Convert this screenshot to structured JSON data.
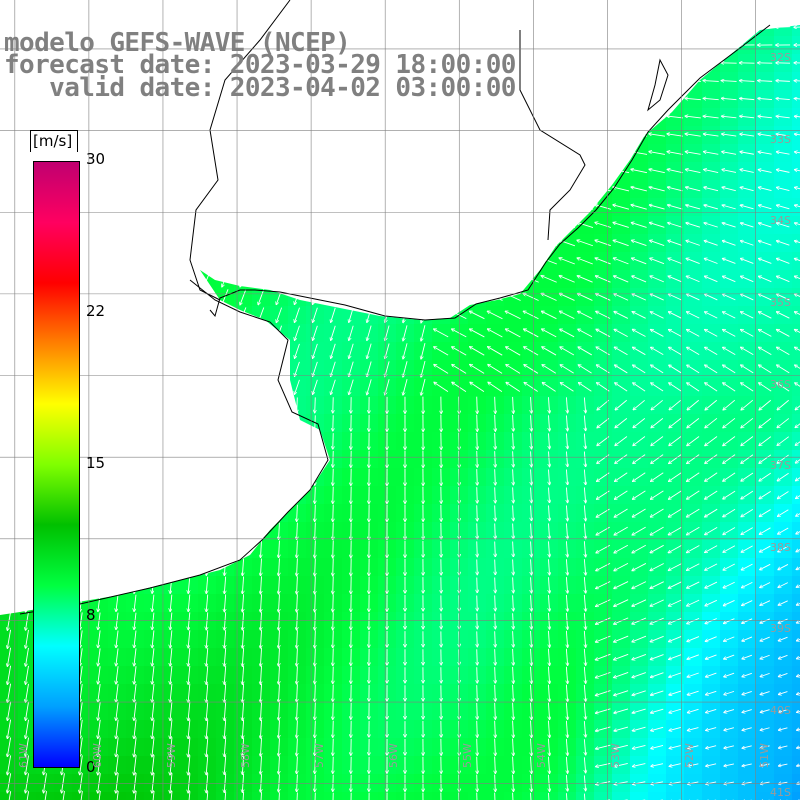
{
  "title": {
    "line1": "modelo GEFS-WAVE (NCEP)",
    "line2": "forecast date: 2023-03-29 18:00:00",
    "line3": "   valid date: 2023-04-02 03:00:00"
  },
  "colorbar": {
    "unit": "[m/s]",
    "min": 0,
    "max": 30,
    "ticks": [
      "30",
      "22",
      "15",
      "8",
      "0"
    ],
    "tick_values": [
      30,
      22.5,
      15,
      7.5,
      0
    ],
    "colors": [
      "#0000ff",
      "#00a0ff",
      "#00ffff",
      "#00ff40",
      "#00c000",
      "#80ff00",
      "#ffff00",
      "#ff8000",
      "#ff0000",
      "#ff0060",
      "#c00070"
    ]
  },
  "map": {
    "lat_labels": [
      "32S",
      "33S",
      "34S",
      "35S",
      "36S",
      "37S",
      "38S",
      "39S",
      "40S",
      "41S"
    ],
    "lat_values": [
      -32,
      -33,
      -34,
      -35,
      -36,
      -37,
      -38,
      -39,
      -40,
      -41
    ],
    "lon_labels": [
      "61W",
      "60W",
      "59W",
      "58W",
      "57W",
      "56W",
      "55W",
      "54W",
      "53W",
      "52W",
      "51W"
    ],
    "lon_values": [
      -61,
      -60,
      -59,
      -58,
      -57,
      -56,
      -55,
      -54,
      -53,
      -52,
      -51
    ],
    "extent": {
      "lon_min": -61.2,
      "lon_max": -50.4,
      "lat_min": -41.2,
      "lat_max": -31.4
    },
    "land_color": "#ffffff",
    "coast_color": "#000000",
    "grid_color": "#808080",
    "arrow_color": "#ffffff",
    "field_regions": [
      {
        "name": "north-east",
        "speed": 7
      },
      {
        "name": "plata-shelf",
        "speed": 9.5
      },
      {
        "name": "south-west",
        "speed": 11
      },
      {
        "name": "south-east-calm",
        "speed": 3
      }
    ]
  }
}
